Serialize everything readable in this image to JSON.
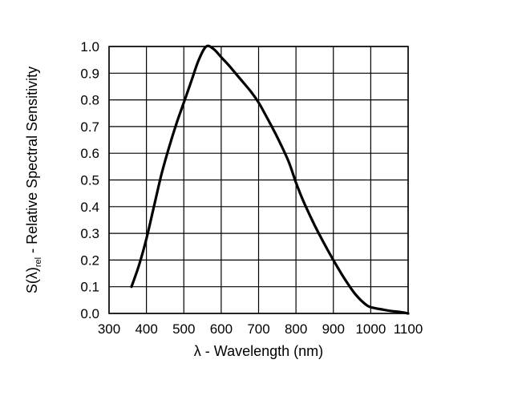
{
  "chart_data": {
    "type": "line",
    "title": "",
    "xlabel": "λ - Wavelength (nm)",
    "ylabel": {
      "main": "S(λ)",
      "sub": "rel",
      "suffix": " - Relative Spectral Sensitivity"
    },
    "xlim": [
      300,
      1100
    ],
    "ylim": [
      0.0,
      1.0
    ],
    "x_ticks": [
      300,
      400,
      500,
      600,
      700,
      800,
      900,
      1000,
      1100
    ],
    "x_tick_labels": [
      "300",
      "400",
      "500",
      "600",
      "700",
      "800",
      "900",
      "1000",
      "1100"
    ],
    "y_ticks": [
      0.0,
      0.1,
      0.2,
      0.3,
      0.4,
      0.5,
      0.6,
      0.7,
      0.8,
      0.9,
      1.0
    ],
    "y_tick_labels": [
      "0.0",
      "0.1",
      "0.2",
      "0.3",
      "0.4",
      "0.5",
      "0.6",
      "0.7",
      "0.8",
      "0.9",
      "1.0"
    ],
    "grid": true,
    "series": [
      {
        "color": "#000000",
        "x": [
          360,
          380,
          400,
          420,
          440,
          460,
          480,
          500,
          520,
          540,
          560,
          580,
          600,
          620,
          650,
          680,
          700,
          720,
          750,
          780,
          800,
          820,
          850,
          880,
          900,
          930,
          960,
          990,
          1010,
          1030,
          1050,
          1080,
          1100
        ],
        "y": [
          0.1,
          0.18,
          0.28,
          0.4,
          0.52,
          0.62,
          0.71,
          0.79,
          0.87,
          0.95,
          1.0,
          0.99,
          0.96,
          0.93,
          0.88,
          0.83,
          0.79,
          0.74,
          0.66,
          0.57,
          0.49,
          0.42,
          0.33,
          0.25,
          0.2,
          0.13,
          0.07,
          0.03,
          0.02,
          0.015,
          0.01,
          0.005,
          0.0
        ]
      }
    ]
  }
}
